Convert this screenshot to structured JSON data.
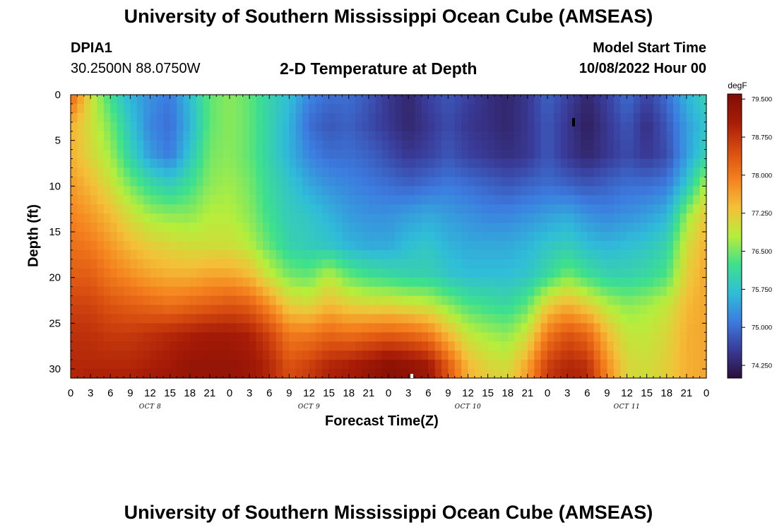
{
  "page": {
    "title": "University of Southern Mississippi Ocean Cube (AMSEAS)",
    "footer_title": "University of Southern Mississippi Ocean Cube (AMSEAS)",
    "station": "DPIA1",
    "coords": "30.2500N  88.0750W",
    "model_start_label": "Model Start Time",
    "model_start_value": "10/08/2022 Hour 00"
  },
  "colors": {
    "stops": [
      "#2a0f3a",
      "#3a3c9a",
      "#3c7ce0",
      "#2fbdd8",
      "#3ee08c",
      "#b6ee3c",
      "#f4c038",
      "#f5811e",
      "#d84d10",
      "#a81c07",
      "#7f0d04"
    ]
  },
  "chart_data": {
    "type": "heatmap",
    "title": "2-D Temperature at Depth",
    "xlabel": "Forecast Time(Z)",
    "ylabel": "Depth (ft)",
    "x_ticks": [
      "0",
      "3",
      "6",
      "9",
      "12",
      "15",
      "18",
      "21",
      "0",
      "3",
      "6",
      "9",
      "12",
      "15",
      "18",
      "21",
      "0",
      "3",
      "6",
      "9",
      "12",
      "15",
      "18",
      "21",
      "0",
      "3",
      "6",
      "9",
      "12",
      "15",
      "18",
      "21",
      "0"
    ],
    "day_labels": [
      "OCT 8",
      "OCT 9",
      "OCT 10",
      "OCT 11"
    ],
    "y_ticks": [
      0,
      5,
      10,
      15,
      20,
      25,
      30
    ],
    "x_range": [
      0,
      96
    ],
    "y_range": [
      0,
      31
    ],
    "colorbar": {
      "unit": "degF",
      "min": 74.0,
      "max": 79.6,
      "labels": [
        "79.500",
        "78.750",
        "78.000",
        "77.250",
        "76.500",
        "75.750",
        "75.000",
        "74.250"
      ]
    },
    "depth_levels_ft": [
      0,
      3.3,
      6.6,
      9.8,
      13.1,
      16.4,
      19.7,
      23.0,
      26.2,
      29.5,
      31
    ],
    "time_hours": [
      0,
      3,
      6,
      9,
      12,
      15,
      18,
      21,
      24,
      27,
      30,
      33,
      36,
      39,
      42,
      45,
      48,
      51,
      54,
      57,
      60,
      63,
      66,
      69,
      72,
      75,
      78,
      81,
      84,
      87,
      90,
      93,
      96
    ],
    "temperature_degF": [
      [
        78.3,
        77.0,
        76.2,
        75.6,
        75.3,
        75.1,
        75.7,
        76.4,
        76.6,
        76.4,
        76.0,
        75.7,
        75.2,
        75.0,
        75.0,
        74.8,
        74.5,
        74.3,
        74.6,
        74.8,
        74.6,
        74.4,
        74.3,
        74.5,
        74.9,
        74.6,
        74.3,
        74.6,
        75.0,
        74.6,
        75.0,
        75.6,
        76.0
      ],
      [
        77.5,
        77.0,
        76.5,
        75.8,
        75.2,
        75.0,
        75.6,
        76.4,
        76.6,
        76.4,
        76.0,
        75.6,
        75.0,
        74.8,
        74.9,
        74.7,
        74.5,
        74.3,
        74.5,
        74.7,
        74.5,
        74.4,
        74.3,
        74.5,
        74.8,
        74.5,
        74.2,
        74.5,
        74.8,
        74.4,
        74.8,
        75.4,
        75.8
      ],
      [
        77.5,
        77.1,
        76.7,
        76.0,
        75.4,
        75.1,
        75.8,
        76.5,
        76.6,
        76.4,
        76.0,
        75.6,
        75.2,
        75.0,
        75.0,
        74.9,
        74.7,
        74.5,
        74.6,
        74.8,
        74.6,
        74.5,
        74.4,
        74.5,
        74.8,
        74.5,
        74.3,
        74.5,
        74.7,
        74.5,
        74.7,
        75.4,
        76.0
      ],
      [
        77.7,
        77.4,
        77.0,
        76.5,
        76.1,
        75.9,
        76.2,
        76.6,
        76.7,
        76.5,
        76.1,
        75.8,
        75.5,
        75.3,
        75.2,
        75.1,
        75.0,
        74.9,
        75.0,
        75.1,
        75.0,
        74.9,
        74.8,
        74.9,
        75.0,
        74.9,
        74.8,
        74.9,
        75.0,
        75.0,
        75.1,
        75.8,
        76.8
      ],
      [
        77.9,
        77.7,
        77.4,
        77.0,
        76.7,
        76.6,
        76.6,
        76.8,
        76.8,
        76.6,
        76.2,
        75.9,
        75.8,
        75.6,
        75.4,
        75.3,
        75.3,
        75.4,
        75.5,
        75.4,
        75.3,
        75.2,
        75.2,
        75.3,
        75.4,
        75.5,
        75.3,
        75.2,
        75.3,
        75.4,
        75.6,
        76.6,
        77.3
      ],
      [
        78.1,
        78.0,
        77.7,
        77.4,
        77.2,
        77.1,
        77.0,
        77.0,
        77.0,
        76.8,
        76.4,
        76.0,
        75.9,
        75.8,
        75.6,
        75.5,
        75.5,
        75.7,
        75.8,
        75.6,
        75.5,
        75.5,
        75.5,
        75.6,
        75.8,
        75.9,
        75.7,
        75.6,
        75.7,
        75.8,
        76.0,
        77.0,
        77.5
      ],
      [
        78.3,
        78.3,
        78.0,
        77.8,
        77.6,
        77.5,
        77.5,
        77.6,
        77.6,
        77.4,
        76.9,
        76.5,
        76.4,
        76.8,
        76.4,
        76.2,
        76.1,
        76.0,
        76.0,
        75.8,
        75.7,
        75.7,
        75.7,
        75.8,
        76.1,
        76.5,
        76.2,
        76.0,
        76.0,
        76.1,
        76.3,
        77.2,
        77.6
      ],
      [
        78.6,
        78.6,
        78.4,
        78.3,
        78.2,
        78.1,
        78.2,
        78.3,
        78.4,
        78.3,
        77.8,
        77.2,
        77.1,
        77.4,
        77.2,
        77.1,
        77.1,
        77.0,
        76.9,
        76.6,
        76.3,
        76.2,
        76.1,
        76.4,
        77.2,
        77.5,
        77.2,
        76.8,
        76.6,
        76.7,
        76.9,
        77.4,
        77.6
      ],
      [
        78.8,
        78.8,
        78.7,
        78.7,
        78.8,
        78.9,
        79.0,
        79.1,
        79.1,
        79.0,
        78.6,
        78.0,
        78.0,
        78.2,
        78.1,
        78.2,
        78.3,
        78.2,
        78.0,
        77.4,
        76.9,
        76.7,
        76.6,
        77.0,
        78.0,
        78.4,
        78.2,
        77.4,
        76.9,
        76.9,
        77.1,
        77.5,
        77.6
      ],
      [
        78.9,
        78.9,
        78.9,
        78.9,
        79.0,
        79.1,
        79.3,
        79.3,
        79.3,
        79.2,
        78.9,
        78.4,
        78.6,
        78.9,
        79.0,
        79.2,
        79.4,
        79.3,
        79.1,
        78.3,
        77.4,
        77.1,
        77.0,
        77.6,
        78.6,
        78.9,
        78.8,
        77.8,
        77.1,
        77.0,
        77.2,
        77.5,
        77.6
      ],
      [
        78.9,
        79.0,
        79.0,
        79.0,
        79.1,
        79.2,
        79.3,
        79.3,
        79.3,
        79.2,
        78.9,
        78.5,
        78.7,
        79.0,
        79.1,
        79.3,
        79.5,
        79.4,
        79.2,
        78.4,
        77.5,
        77.2,
        77.1,
        77.7,
        78.7,
        79.0,
        78.9,
        77.9,
        77.1,
        77.0,
        77.2,
        77.5,
        77.6
      ]
    ]
  }
}
